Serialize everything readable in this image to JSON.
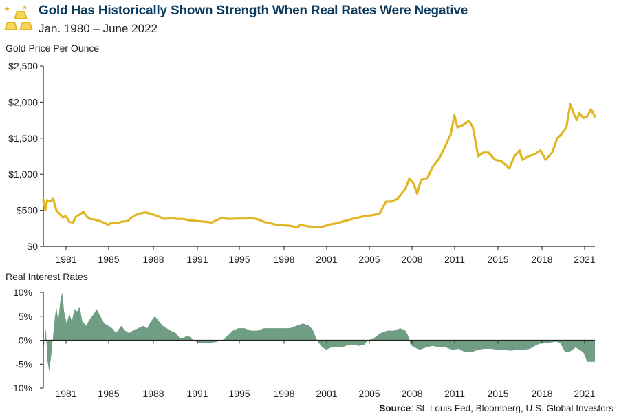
{
  "header": {
    "title": "Gold Has Historically Shown Strength When Real Rates Were Negative",
    "subtitle": "Jan. 1980 – June 2022"
  },
  "source": {
    "label": "Source",
    "text": ": St. Louis Fed, Bloomberg, U.S. Global Investors"
  },
  "colors": {
    "gold": "#E0B623",
    "rates": "#6F9E84",
    "title": "#0D3B5E",
    "axis": "#222222"
  },
  "chart_data": [
    {
      "type": "line",
      "title": "Gold Price Per Ounce",
      "ylabel": "Gold Price Per Ounce",
      "xlim": [
        1980,
        2022.5
      ],
      "ylim": [
        0,
        2500
      ],
      "yticks": [
        0,
        500,
        1000,
        1500,
        2000,
        2500
      ],
      "ytick_labels": [
        "$0",
        "$500",
        "$1,000",
        "$1,500",
        "$2,000",
        "$2,500"
      ],
      "xticks": [
        "1981",
        "1985",
        "1988",
        "1991",
        "1995",
        "1998",
        "2001",
        "2005",
        "2008",
        "2011",
        "2015",
        "2018",
        "2021"
      ],
      "series": [
        {
          "name": "Gold Price",
          "x": [
            1980.0,
            1980.15,
            1980.3,
            1980.5,
            1980.75,
            1981.0,
            1981.25,
            1981.5,
            1981.75,
            1982.0,
            1982.3,
            1982.5,
            1982.8,
            1983.1,
            1983.3,
            1983.6,
            1984.0,
            1984.5,
            1985.0,
            1985.3,
            1985.7,
            1986.0,
            1986.5,
            1986.8,
            1987.3,
            1987.9,
            1988.3,
            1988.8,
            1989.3,
            1989.9,
            1990.3,
            1990.8,
            1991.3,
            1991.9,
            1992.5,
            1993.0,
            1993.3,
            1993.7,
            1994.3,
            1995.0,
            1995.7,
            1996.1,
            1996.6,
            1997.0,
            1997.5,
            1997.9,
            1998.5,
            1999.0,
            1999.6,
            1999.8,
            2000.3,
            2001.0,
            2001.5,
            2002.0,
            2002.6,
            2003.2,
            2003.8,
            2004.3,
            2004.8,
            2005.3,
            2005.9,
            2006.4,
            2006.8,
            2007.3,
            2007.9,
            2008.2,
            2008.5,
            2008.8,
            2009.1,
            2009.6,
            2010.0,
            2010.5,
            2011.0,
            2011.4,
            2011.67,
            2011.9,
            2012.3,
            2012.8,
            2013.1,
            2013.5,
            2013.9,
            2014.3,
            2014.8,
            2015.3,
            2015.9,
            2016.3,
            2016.7,
            2016.9,
            2017.4,
            2017.9,
            2018.3,
            2018.7,
            2019.2,
            2019.6,
            2019.9,
            2020.3,
            2020.6,
            2020.85,
            2021.1,
            2021.3,
            2021.6,
            2021.9,
            2022.2,
            2022.5
          ],
          "values": [
            650,
            500,
            640,
            620,
            660,
            500,
            450,
            400,
            420,
            340,
            330,
            410,
            440,
            480,
            420,
            380,
            370,
            340,
            300,
            330,
            320,
            340,
            350,
            400,
            450,
            470,
            450,
            420,
            380,
            390,
            380,
            380,
            360,
            350,
            340,
            330,
            360,
            390,
            380,
            385,
            385,
            390,
            370,
            340,
            320,
            300,
            290,
            285,
            260,
            300,
            280,
            265,
            270,
            300,
            320,
            350,
            380,
            400,
            420,
            430,
            450,
            620,
            620,
            660,
            800,
            940,
            880,
            730,
            920,
            950,
            1100,
            1220,
            1400,
            1560,
            1820,
            1650,
            1680,
            1740,
            1650,
            1250,
            1300,
            1300,
            1200,
            1180,
            1080,
            1250,
            1330,
            1200,
            1250,
            1280,
            1330,
            1200,
            1300,
            1500,
            1550,
            1650,
            1970,
            1850,
            1750,
            1850,
            1780,
            1800,
            1900,
            1800
          ]
        }
      ]
    },
    {
      "type": "area",
      "title": "Real Interest Rates",
      "ylabel": "Real Interest Rates",
      "xlim": [
        1980,
        2022.5
      ],
      "ylim": [
        -10,
        10
      ],
      "yticks": [
        10,
        5,
        0,
        -5,
        -10
      ],
      "ytick_labels": [
        "10%",
        "5%",
        "0%",
        "-5%",
        "-10%"
      ],
      "xticks": [
        "1981",
        "1985",
        "1988",
        "1991",
        "1995",
        "1998",
        "2001",
        "2005",
        "2008",
        "2011",
        "2015",
        "2018",
        "2021"
      ],
      "series": [
        {
          "name": "Real Interest Rate",
          "x": [
            1980.0,
            1980.2,
            1980.3,
            1980.45,
            1980.6,
            1980.75,
            1980.9,
            1981.0,
            1981.15,
            1981.3,
            1981.45,
            1981.6,
            1981.8,
            1982.0,
            1982.2,
            1982.4,
            1982.6,
            1982.8,
            1983.0,
            1983.3,
            1983.6,
            1983.9,
            1984.1,
            1984.4,
            1984.7,
            1985.0,
            1985.3,
            1985.6,
            1986.0,
            1986.3,
            1986.6,
            1986.9,
            1987.3,
            1987.7,
            1988.0,
            1988.3,
            1988.6,
            1988.9,
            1989.2,
            1989.5,
            1989.8,
            1990.2,
            1990.5,
            1990.8,
            1991.1,
            1991.4,
            1991.6,
            1991.9,
            1992.2,
            1992.6,
            1993.0,
            1993.4,
            1993.8,
            1994.2,
            1994.6,
            1995.0,
            1995.5,
            1996.0,
            1996.5,
            1997.0,
            1997.5,
            1998.0,
            1998.5,
            1999.0,
            1999.5,
            2000.0,
            2000.5,
            2000.8,
            2001.0,
            2001.2,
            2001.5,
            2001.8,
            2002.2,
            2002.6,
            2003.0,
            2003.5,
            2004.0,
            2004.3,
            2004.7,
            2005.0,
            2005.5,
            2006.0,
            2006.5,
            2007.0,
            2007.5,
            2007.9,
            2008.1,
            2008.3,
            2008.6,
            2009.0,
            2009.5,
            2010.0,
            2010.5,
            2011.0,
            2011.5,
            2012.0,
            2012.5,
            2013.0,
            2013.5,
            2014.0,
            2014.5,
            2015.0,
            2015.5,
            2016.0,
            2016.5,
            2017.0,
            2017.5,
            2018.0,
            2018.5,
            2019.0,
            2019.5,
            2019.8,
            2020.0,
            2020.2,
            2020.5,
            2020.8,
            2021.0,
            2021.3,
            2021.6,
            2021.9,
            2022.2,
            2022.5
          ],
          "values": [
            -2,
            2.5,
            -4,
            -6.5,
            -3.5,
            1,
            5,
            7,
            4,
            8,
            10,
            6,
            3.5,
            5.5,
            4,
            6.5,
            6,
            7,
            4,
            3,
            4.5,
            5.5,
            6.5,
            5,
            3.5,
            3,
            2.5,
            1.5,
            3,
            2,
            1.5,
            2,
            2.5,
            3,
            2.5,
            4,
            5,
            4,
            3,
            2.5,
            2,
            1.5,
            0.5,
            0.5,
            1,
            0.5,
            0,
            -0.5,
            -0.5,
            -0.5,
            -0.5,
            -0.3,
            0,
            1,
            2,
            2.5,
            2.5,
            2,
            2,
            2.5,
            2.5,
            2.5,
            2.5,
            2.5,
            3,
            3.5,
            3,
            2,
            0.5,
            -0.5,
            -1.5,
            -2,
            -1.5,
            -1.5,
            -1.5,
            -1,
            -1,
            -1.2,
            -1,
            0,
            0.5,
            1.5,
            2,
            2,
            2.5,
            2,
            1,
            -1,
            -1.5,
            -2,
            -1.5,
            -1.2,
            -1.5,
            -1.5,
            -2,
            -1.8,
            -2.5,
            -2.5,
            -2,
            -1.8,
            -1.8,
            -2,
            -2,
            -2.2,
            -2,
            -2,
            -1.8,
            -1,
            -0.5,
            -0.5,
            -0.3,
            -0.5,
            -1.5,
            -2.5,
            -2.5,
            -2,
            -1.5,
            -2,
            -2.5,
            -4.5,
            -4.5,
            -4.5
          ]
        }
      ]
    }
  ]
}
